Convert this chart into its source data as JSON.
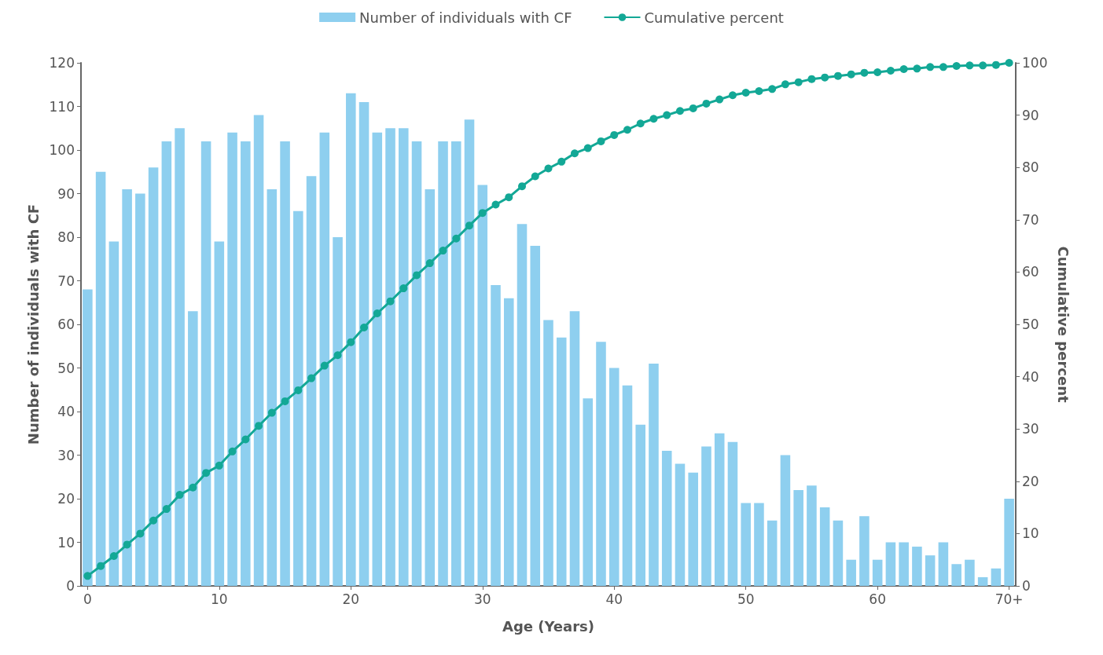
{
  "chart_data": {
    "type": "bar",
    "xlabel": "Age (Years)",
    "ylabel": "Number of individuals with CF",
    "y2label": "Cumulative percent",
    "categories": [
      "0",
      null,
      null,
      null,
      null,
      null,
      null,
      null,
      null,
      null,
      "10",
      null,
      null,
      null,
      null,
      null,
      null,
      null,
      null,
      null,
      "20",
      null,
      null,
      null,
      null,
      null,
      null,
      null,
      null,
      null,
      "30",
      null,
      null,
      null,
      null,
      null,
      null,
      null,
      null,
      null,
      "40",
      null,
      null,
      null,
      null,
      null,
      null,
      null,
      null,
      null,
      "50",
      null,
      null,
      null,
      null,
      null,
      null,
      null,
      null,
      null,
      "60",
      null,
      null,
      null,
      null,
      null,
      null,
      null,
      null,
      null,
      "70+"
    ],
    "series": [
      {
        "name": "Number of individuals with CF",
        "color": "#8ecfef",
        "values": [
          68,
          95,
          79,
          91,
          90,
          96,
          102,
          105,
          63,
          102,
          79,
          104,
          102,
          108,
          91,
          102,
          86,
          94,
          104,
          80,
          113,
          111,
          104,
          105,
          105,
          102,
          91,
          102,
          102,
          107,
          92,
          69,
          66,
          83,
          78,
          61,
          57,
          63,
          43,
          56,
          50,
          46,
          37,
          51,
          31,
          28,
          26,
          32,
          35,
          33,
          19,
          19,
          15,
          30,
          22,
          23,
          18,
          15,
          6,
          16,
          6,
          10,
          10,
          9,
          7,
          10,
          5,
          6,
          2,
          4,
          20
        ]
      },
      {
        "name": "Cumulative percent",
        "type": "line",
        "axis": "y2",
        "color": "#13a896",
        "marker": "circle",
        "line_style": "solid",
        "values": [
          1.9,
          3.8,
          5.7,
          7.9,
          10,
          12.5,
          14.7,
          17.4,
          18.8,
          21.6,
          23,
          25.7,
          28,
          30.6,
          33.1,
          35.3,
          37.4,
          39.7,
          42.1,
          44.1,
          46.6,
          49.4,
          52.1,
          54.4,
          56.9,
          59.4,
          61.7,
          64.1,
          66.4,
          68.9,
          71.3,
          72.9,
          74.3,
          76.4,
          78.3,
          79.8,
          81.1,
          82.7,
          83.7,
          85,
          86.2,
          87.2,
          88.4,
          89.3,
          90,
          90.8,
          91.3,
          92.2,
          93,
          93.8,
          94.3,
          94.6,
          95,
          95.9,
          96.3,
          96.9,
          97.2,
          97.5,
          97.8,
          98.1,
          98.2,
          98.5,
          98.8,
          98.9,
          99.2,
          99.2,
          99.4,
          99.5,
          99.5,
          99.6,
          100
        ]
      }
    ],
    "ylim": [
      0,
      120
    ],
    "yticks": [
      0,
      10,
      20,
      30,
      40,
      50,
      60,
      70,
      80,
      90,
      100,
      110,
      120
    ],
    "y2lim": [
      0,
      100
    ],
    "y2ticks": [
      0,
      10,
      20,
      30,
      40,
      50,
      60,
      70,
      80,
      90,
      100
    ],
    "legend": "top",
    "grid": false
  }
}
